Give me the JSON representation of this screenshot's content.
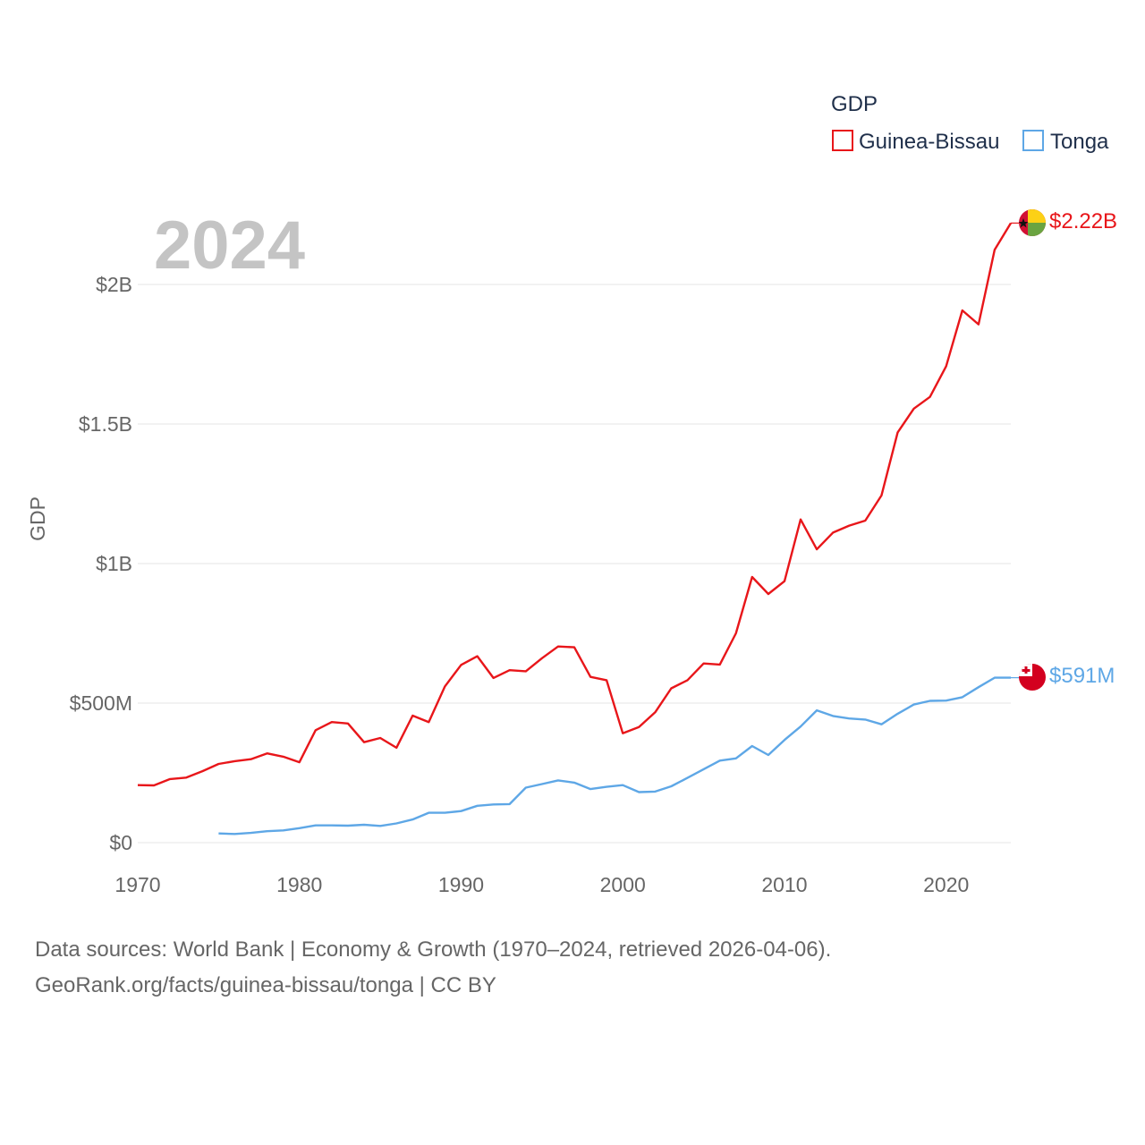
{
  "chart_data": {
    "type": "line",
    "title": "GDP",
    "year_label": "2024",
    "ylabel": "GDP",
    "xlabel": "",
    "xlim": [
      1970,
      2024
    ],
    "ylim": [
      0,
      2000000000
    ],
    "y_ticks": [
      {
        "value": 0,
        "label": "$0"
      },
      {
        "value": 500000000,
        "label": "$500M"
      },
      {
        "value": 1000000000,
        "label": "$1B"
      },
      {
        "value": 1500000000,
        "label": "$1.5B"
      },
      {
        "value": 2000000000,
        "label": "$2B"
      }
    ],
    "x_ticks": [
      {
        "value": 1970,
        "label": "1970"
      },
      {
        "value": 1980,
        "label": "1980"
      },
      {
        "value": 1990,
        "label": "1990"
      },
      {
        "value": 2000,
        "label": "2000"
      },
      {
        "value": 2010,
        "label": "2010"
      },
      {
        "value": 2020,
        "label": "2020"
      }
    ],
    "legend": {
      "title": "GDP",
      "position": "top-right"
    },
    "series": [
      {
        "name": "Guinea-Bissau",
        "color": "#e8161a",
        "end_label": "$2.22B",
        "flag_icon": "guinea-bissau-flag-icon",
        "x": [
          1970,
          1971,
          1972,
          1973,
          1974,
          1975,
          1976,
          1977,
          1978,
          1979,
          1980,
          1981,
          1982,
          1983,
          1984,
          1985,
          1986,
          1987,
          1988,
          1989,
          1990,
          1991,
          1992,
          1993,
          1994,
          1995,
          1996,
          1997,
          1998,
          1999,
          2000,
          2001,
          2002,
          2003,
          2004,
          2005,
          2006,
          2007,
          2008,
          2009,
          2010,
          2011,
          2012,
          2013,
          2014,
          2015,
          2016,
          2017,
          2018,
          2019,
          2020,
          2021,
          2022,
          2023,
          2024
        ],
        "values": [
          206000000,
          205000000,
          228000000,
          233000000,
          256000000,
          282000000,
          292000000,
          299000000,
          320000000,
          308000000,
          288000000,
          403000000,
          432000000,
          427000000,
          360000000,
          375000000,
          340000000,
          455000000,
          432000000,
          560000000,
          637000000,
          668000000,
          590000000,
          618000000,
          614000000,
          661000000,
          703000000,
          700000000,
          594000000,
          582000000,
          392000000,
          414000000,
          467000000,
          553000000,
          582000000,
          642000000,
          638000000,
          750000000,
          952000000,
          891000000,
          937000000,
          1158000000,
          1051000000,
          1111000000,
          1136000000,
          1154000000,
          1244000000,
          1470000000,
          1555000000,
          1597000000,
          1707000000,
          1907000000,
          1857000000,
          2124000000,
          2220000000
        ]
      },
      {
        "name": "Tonga",
        "color": "#5ea7e6",
        "end_label": "$591M",
        "flag_icon": "tonga-flag-icon",
        "x": [
          1975,
          1976,
          1977,
          1978,
          1979,
          1980,
          1981,
          1982,
          1983,
          1984,
          1985,
          1986,
          1987,
          1988,
          1989,
          1990,
          1991,
          1992,
          1993,
          1994,
          1995,
          1996,
          1997,
          1998,
          1999,
          2000,
          2001,
          2002,
          2003,
          2004,
          2005,
          2006,
          2007,
          2008,
          2009,
          2010,
          2011,
          2012,
          2013,
          2014,
          2015,
          2016,
          2017,
          2018,
          2019,
          2020,
          2021,
          2022,
          2023,
          2024
        ],
        "values": [
          33000000,
          31000000,
          35000000,
          41000000,
          44000000,
          52000000,
          62000000,
          62000000,
          61000000,
          64000000,
          60000000,
          69000000,
          83000000,
          107000000,
          107000000,
          113000000,
          132000000,
          137000000,
          138000000,
          197000000,
          210000000,
          223000000,
          215000000,
          192000000,
          200000000,
          206000000,
          181000000,
          183000000,
          202000000,
          232000000,
          263000000,
          294000000,
          302000000,
          346000000,
          314000000,
          368000000,
          416000000,
          474000000,
          454000000,
          445000000,
          441000000,
          424000000,
          462000000,
          495000000,
          508000000,
          509000000,
          521000000,
          557000000,
          591000000,
          591000000
        ]
      }
    ]
  },
  "footer": {
    "line1": "Data sources: World Bank | Economy & Growth (1970–2024, retrieved 2026-04-06).",
    "line2": "GeoRank.org/facts/guinea-bissau/tonga | CC BY"
  }
}
